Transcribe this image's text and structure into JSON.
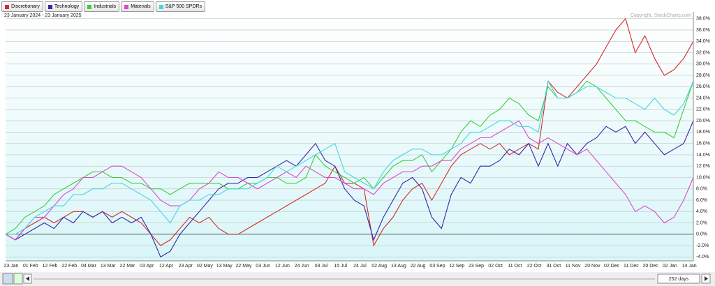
{
  "chart_data": {
    "type": "line",
    "subtitle": "23 January 2024 - 23 January 2025",
    "annotation": "Copyright, StockCharts.com",
    "categories": [
      "23 Jan",
      null,
      "01 Feb",
      null,
      "12 Feb",
      null,
      "22 Feb",
      null,
      "04 Mar",
      null,
      "13 Mar",
      null,
      "22 Mar",
      null,
      "03 Apr",
      null,
      "12 Apr",
      null,
      "23 Apr",
      null,
      "02 May",
      null,
      "13 May",
      null,
      "22 May",
      null,
      "03 Jun",
      null,
      "12 Jun",
      null,
      "24 Jun",
      null,
      "03 Jul",
      null,
      "15 Jul",
      null,
      "24 Jul",
      null,
      "02 Aug",
      null,
      "13 Aug",
      null,
      "22 Aug",
      null,
      "03 Sep",
      null,
      "12 Sep",
      null,
      "23 Sep",
      null,
      "02 Oct",
      null,
      "11 Oct",
      null,
      "22 Oct",
      null,
      "31 Oct",
      null,
      "11 Nov",
      null,
      "20 Nov",
      null,
      "02 Dec",
      null,
      "11 Dec",
      null,
      "20 Dec",
      null,
      "02 Jan",
      null,
      "14 Jan",
      null
    ],
    "series": [
      {
        "name": "Discretionary",
        "color": "#d42a2a",
        "values": [
          0,
          -1,
          1,
          2,
          3,
          2,
          3,
          4,
          4,
          3,
          4,
          3,
          4,
          3,
          2,
          0,
          -2,
          -1,
          1,
          3,
          2,
          3,
          1,
          0,
          0,
          1,
          2,
          3,
          4,
          5,
          6,
          7,
          8,
          9,
          12,
          9,
          9,
          8,
          -2,
          1,
          3,
          6,
          8,
          9,
          6,
          9,
          12,
          14,
          15,
          16,
          15,
          16,
          14,
          15,
          16,
          15,
          27,
          25,
          24,
          26,
          28,
          30,
          33,
          36,
          38,
          32,
          35,
          31,
          28,
          29,
          31,
          34
        ]
      },
      {
        "name": "Technology",
        "color": "#3a24a8",
        "values": [
          0,
          -1,
          0,
          1,
          2,
          1,
          3,
          2,
          4,
          3,
          4,
          2,
          3,
          2,
          3,
          0,
          -4,
          -3,
          0,
          2,
          4,
          6,
          8,
          9,
          9,
          10,
          10,
          11,
          12,
          13,
          12,
          14,
          16,
          13,
          12,
          8,
          6,
          5,
          -1,
          3,
          6,
          9,
          10,
          8,
          3,
          1,
          7,
          10,
          9,
          12,
          12,
          13,
          15,
          14,
          16,
          12,
          16,
          12,
          16,
          14,
          16,
          17,
          19,
          18,
          19,
          16,
          18,
          16,
          14,
          15,
          16,
          20
        ]
      },
      {
        "name": "Industrials",
        "color": "#3ccc3c",
        "values": [
          0,
          1,
          3,
          4,
          5,
          7,
          8,
          9,
          10,
          11,
          11,
          10,
          10,
          9,
          9,
          8,
          8,
          7,
          8,
          9,
          9,
          9,
          9,
          8,
          8,
          9,
          9,
          10,
          10,
          9,
          9,
          10,
          14,
          12,
          11,
          10,
          9,
          10,
          8,
          10,
          12,
          13,
          13,
          14,
          11,
          13,
          15,
          18,
          20,
          19,
          21,
          22,
          24,
          23,
          21,
          20,
          26,
          24,
          24,
          25,
          27,
          26,
          24,
          22,
          20,
          20,
          19,
          18,
          18,
          17,
          22,
          27
        ]
      },
      {
        "name": "Materials",
        "color": "#e046c8",
        "values": [
          0,
          -1,
          1,
          3,
          3,
          5,
          7,
          8,
          10,
          10,
          11,
          12,
          12,
          11,
          10,
          8,
          6,
          5,
          5,
          6,
          8,
          9,
          11,
          10,
          10,
          9,
          8,
          9,
          10,
          11,
          10,
          12,
          11,
          10,
          10,
          9,
          8,
          8,
          7,
          9,
          10,
          11,
          11,
          12,
          12,
          13,
          13,
          15,
          16,
          17,
          17,
          18,
          19,
          20,
          17,
          16,
          17,
          16,
          15,
          14,
          15,
          13,
          11,
          9,
          7,
          4,
          5,
          4,
          2,
          3,
          6,
          10
        ]
      },
      {
        "name": "S&P 500 SPDRs",
        "color": "#48d4e4",
        "values": [
          0,
          0,
          1,
          3,
          4,
          5,
          5,
          7,
          7,
          8,
          8,
          9,
          9,
          8,
          7,
          6,
          4,
          2,
          5,
          6,
          6,
          7,
          7,
          8,
          8,
          8,
          9,
          10,
          12,
          11,
          12,
          13,
          14,
          15,
          16,
          11,
          10,
          9,
          8,
          11,
          13,
          14,
          15,
          15,
          14,
          14,
          15,
          16,
          18,
          18,
          19,
          20,
          20,
          19,
          19,
          18,
          27,
          24,
          24,
          25,
          26,
          26,
          25,
          24,
          24,
          23,
          22,
          24,
          22,
          21,
          23,
          27
        ]
      }
    ],
    "ylim": [
      -4.7,
      39.2
    ],
    "yticks": [
      {
        "value": -4,
        "label": "-4.0%"
      },
      {
        "value": -2,
        "label": "-2.0%"
      },
      {
        "value": 0,
        "label": "0.0%"
      },
      {
        "value": 2,
        "label": "2.0%"
      },
      {
        "value": 4,
        "label": "4.0%"
      },
      {
        "value": 6,
        "label": "6.0%"
      },
      {
        "value": 8,
        "label": "8.0%"
      },
      {
        "value": 10,
        "label": "10.0%"
      },
      {
        "value": 12,
        "label": "12.0%"
      },
      {
        "value": 14,
        "label": "14.0%"
      },
      {
        "value": 16,
        "label": "16.0%"
      },
      {
        "value": 18,
        "label": "18.0%"
      },
      {
        "value": 20,
        "label": "20.0%"
      },
      {
        "value": 22,
        "label": "22.0%"
      },
      {
        "value": 24,
        "label": "24.0%"
      },
      {
        "value": 26,
        "label": "26.0%"
      },
      {
        "value": 28,
        "label": "28.0%"
      },
      {
        "value": 30,
        "label": "30.0%"
      },
      {
        "value": 32,
        "label": "32.0%"
      },
      {
        "value": 34,
        "label": "34.0%"
      },
      {
        "value": 36,
        "label": "36.0%"
      },
      {
        "value": 38,
        "label": "38.0%"
      }
    ],
    "grid": true,
    "legend": "top-left"
  },
  "scrollbar": {
    "range_label": "252 days"
  }
}
